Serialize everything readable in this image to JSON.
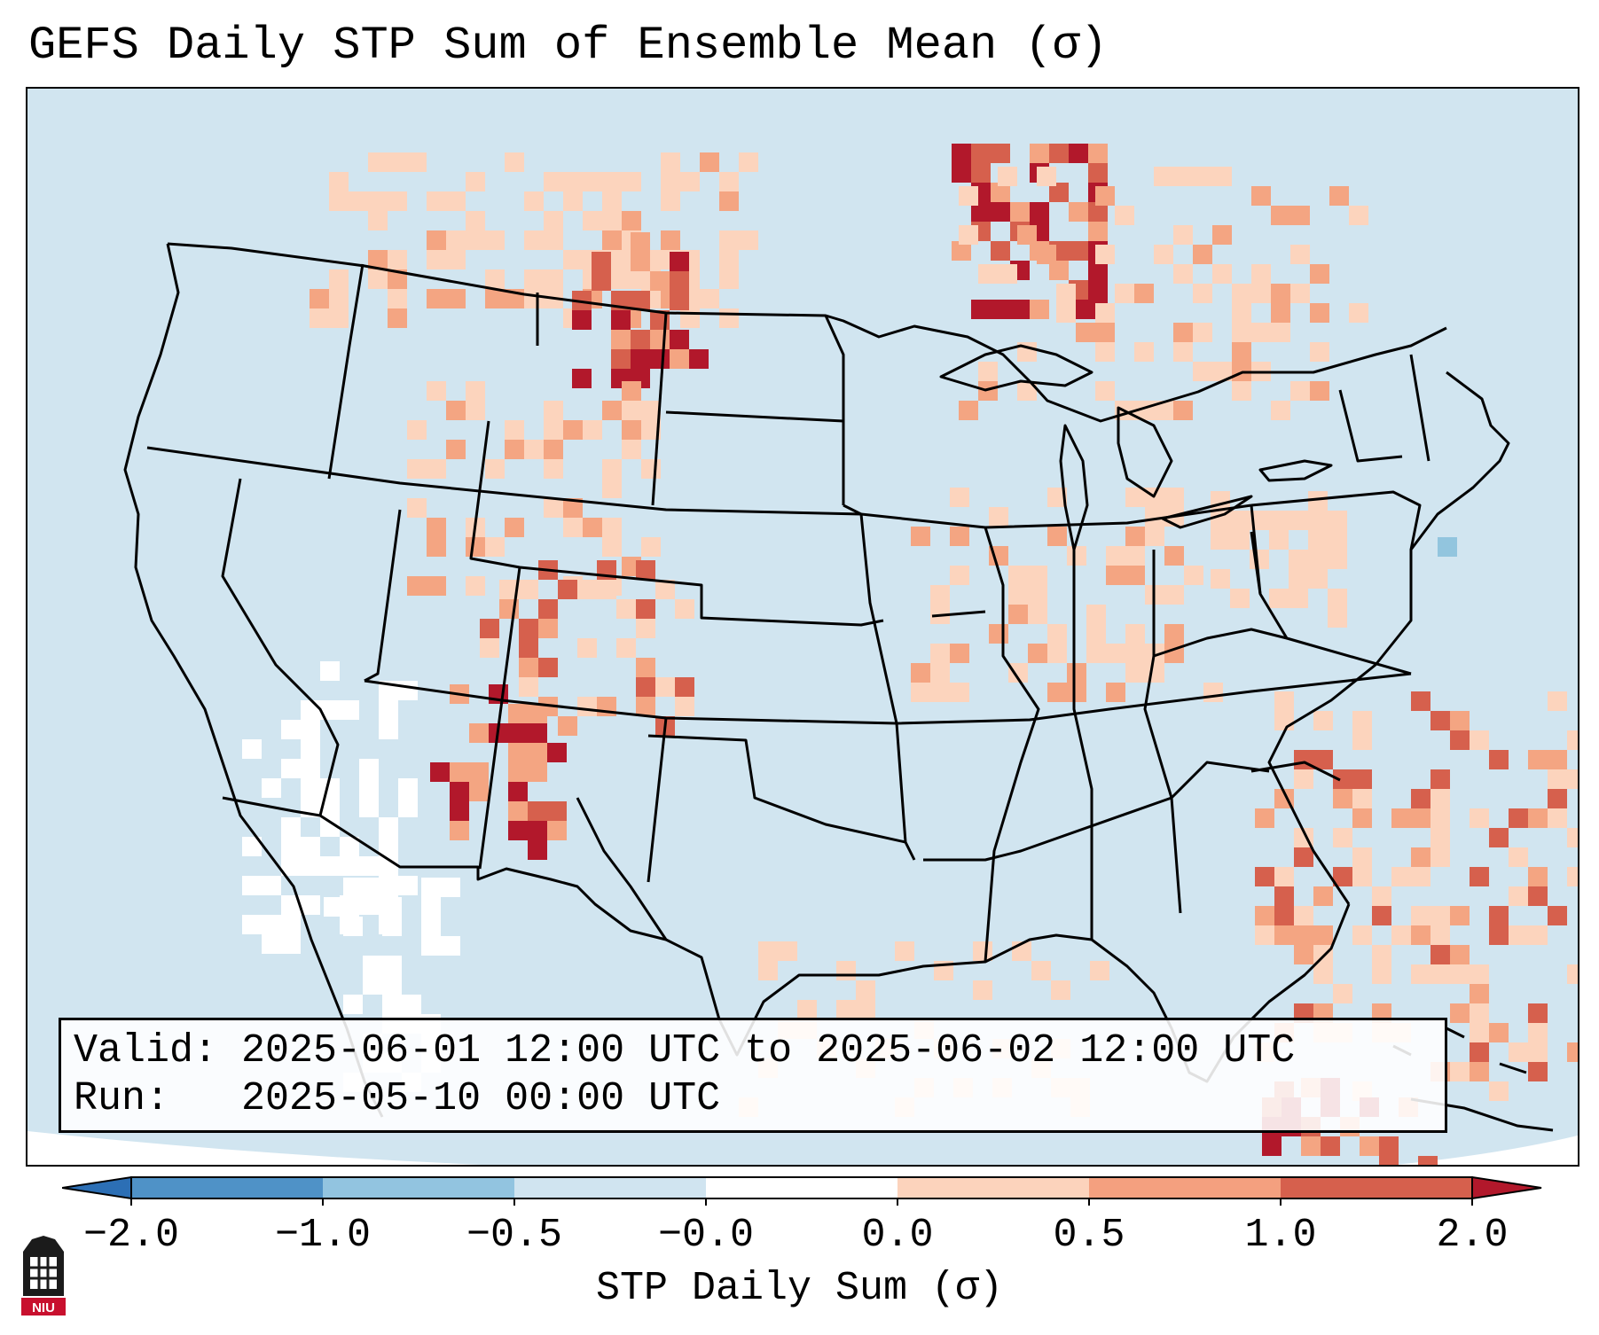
{
  "title": "GEFS Daily STP Sum of Ensemble Mean (σ)",
  "info": {
    "valid_label": "Valid:",
    "valid_value": "2025-06-01 12:00 UTC to 2025-06-02 12:00 UTC",
    "run_label": "Run:",
    "run_value": "2025-05-10 00:00 UTC"
  },
  "colorbar": {
    "label": "STP Daily Sum (σ)",
    "ticks": [
      "−2.0",
      "−1.0",
      "−0.5",
      "−0.0",
      "0.0",
      "0.5",
      "1.0",
      "2.0"
    ],
    "colors": {
      "below": "#2c6fb5",
      "bin_m2_m1": "#4f92c7",
      "bin_m1_m05": "#92c4e0",
      "bin_m05_0": "#d0e4f0",
      "bin_zero": "#ffffff",
      "bin_0_05": "#fcd3bc",
      "bin_05_1": "#f4a07f",
      "bin_1_2": "#d6604d",
      "above": "#b2182b"
    }
  },
  "map_colors": {
    "background": "#d1e5f0",
    "light": "#fcd4bd",
    "medium": "#f4a582",
    "strong": "#d6604d",
    "extreme": "#b2182b",
    "neutral": "#ffffff",
    "negative": "#92c5de"
  },
  "logo": {
    "text": "NIU",
    "icon": "niu-huskies-logo-icon",
    "colors": {
      "dark": "#1b1b1b",
      "red": "#c8102e"
    }
  }
}
